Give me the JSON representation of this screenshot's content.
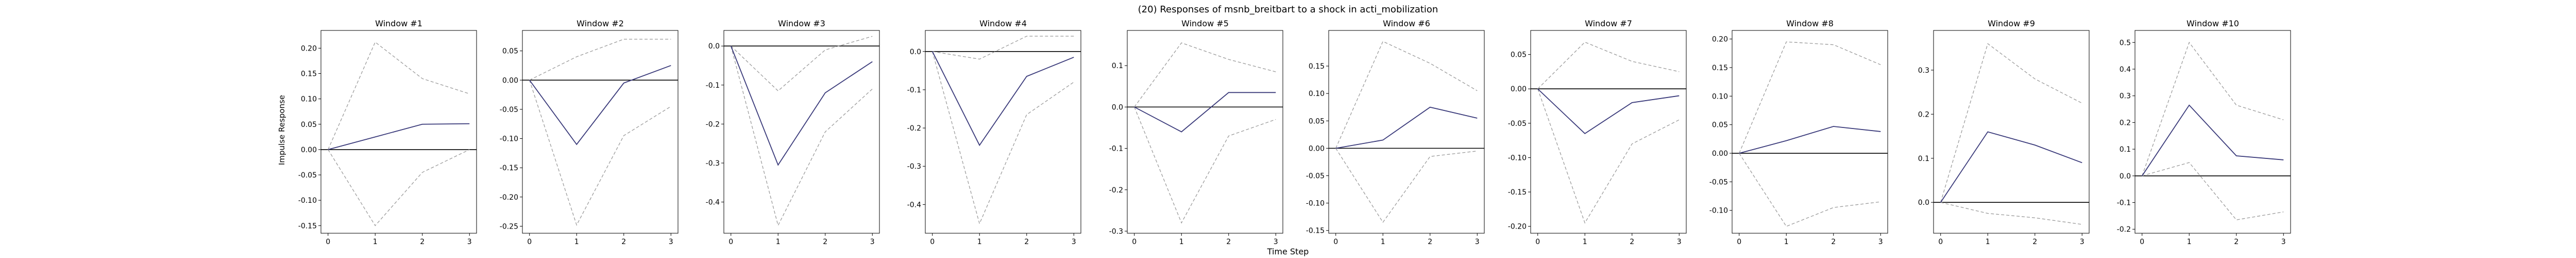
{
  "figure": {
    "suptitle": "(20) Responses of msnb_breitbart to a shock in acti_mobilization",
    "xlabel": "Time Step",
    "ylabel": "Impulse Response"
  },
  "colors": {
    "response_line": "#3a3a7a",
    "band_line": "#9a9a9a",
    "zero_line": "#000000",
    "axes_frame": "#000000"
  },
  "chart_data": [
    {
      "type": "line",
      "title": "Window #1",
      "x": [
        0,
        1,
        2,
        3
      ],
      "yticks": [
        -0.15,
        -0.1,
        -0.05,
        0.0,
        0.05,
        0.1,
        0.15,
        0.2
      ],
      "tick_decimals": 2,
      "ylim": [
        -0.165,
        0.235
      ],
      "series": [
        {
          "values": [
            0,
            0.025,
            0.05,
            0.051
          ]
        },
        {
          "values": [
            0,
            0.212,
            0.14,
            0.11
          ]
        },
        {
          "values": [
            0,
            -0.15,
            -0.045,
            0.0
          ]
        }
      ]
    },
    {
      "type": "line",
      "title": "Window #2",
      "x": [
        0,
        1,
        2,
        3
      ],
      "yticks": [
        -0.25,
        -0.2,
        -0.15,
        -0.1,
        -0.05,
        0.0,
        0.05
      ],
      "tick_decimals": 2,
      "ylim": [
        -0.262,
        0.085
      ],
      "series": [
        {
          "values": [
            0,
            -0.11,
            -0.005,
            0.025
          ]
        },
        {
          "values": [
            0,
            0.04,
            0.07,
            0.07
          ]
        },
        {
          "values": [
            0,
            -0.248,
            -0.095,
            -0.045
          ]
        }
      ]
    },
    {
      "type": "line",
      "title": "Window #3",
      "x": [
        0,
        1,
        2,
        3
      ],
      "yticks": [
        -0.4,
        -0.3,
        -0.2,
        -0.1,
        0.0
      ],
      "tick_decimals": 1,
      "ylim": [
        -0.48,
        0.04
      ],
      "series": [
        {
          "values": [
            0,
            -0.305,
            -0.12,
            -0.04
          ]
        },
        {
          "values": [
            0,
            -0.115,
            -0.01,
            0.025
          ]
        },
        {
          "values": [
            0,
            -0.46,
            -0.22,
            -0.11
          ]
        }
      ]
    },
    {
      "type": "line",
      "title": "Window #4",
      "x": [
        0,
        1,
        2,
        3
      ],
      "yticks": [
        -0.4,
        -0.3,
        -0.2,
        -0.1,
        0.0
      ],
      "tick_decimals": 1,
      "ylim": [
        -0.475,
        0.055
      ],
      "series": [
        {
          "values": [
            0,
            -0.245,
            -0.065,
            -0.015
          ]
        },
        {
          "values": [
            0,
            -0.02,
            0.04,
            0.04
          ]
        },
        {
          "values": [
            0,
            -0.45,
            -0.165,
            -0.08
          ]
        }
      ]
    },
    {
      "type": "line",
      "title": "Window #5",
      "x": [
        0,
        1,
        2,
        3
      ],
      "yticks": [
        -0.3,
        -0.2,
        -0.1,
        0.0,
        0.1
      ],
      "tick_decimals": 1,
      "ylim": [
        -0.305,
        0.185
      ],
      "series": [
        {
          "values": [
            0,
            -0.06,
            0.035,
            0.035
          ]
        },
        {
          "values": [
            0,
            0.155,
            0.115,
            0.085
          ]
        },
        {
          "values": [
            0,
            -0.28,
            -0.07,
            -0.03
          ]
        }
      ]
    },
    {
      "type": "line",
      "title": "Window #6",
      "x": [
        0,
        1,
        2,
        3
      ],
      "yticks": [
        -0.15,
        -0.1,
        -0.05,
        0.0,
        0.05,
        0.1,
        0.15
      ],
      "tick_decimals": 2,
      "ylim": [
        -0.155,
        0.215
      ],
      "series": [
        {
          "values": [
            0,
            0.015,
            0.075,
            0.055
          ]
        },
        {
          "values": [
            0,
            0.195,
            0.155,
            0.105
          ]
        },
        {
          "values": [
            0,
            -0.135,
            -0.015,
            -0.005
          ]
        }
      ]
    },
    {
      "type": "line",
      "title": "Window #7",
      "x": [
        0,
        1,
        2,
        3
      ],
      "yticks": [
        -0.2,
        -0.15,
        -0.1,
        -0.05,
        0.0,
        0.05
      ],
      "tick_decimals": 2,
      "ylim": [
        -0.21,
        0.085
      ],
      "series": [
        {
          "values": [
            0,
            -0.065,
            -0.02,
            -0.01
          ]
        },
        {
          "values": [
            0,
            0.068,
            0.04,
            0.025
          ]
        },
        {
          "values": [
            0,
            -0.195,
            -0.08,
            -0.045
          ]
        }
      ]
    },
    {
      "type": "line",
      "title": "Window #8",
      "x": [
        0,
        1,
        2,
        3
      ],
      "yticks": [
        -0.1,
        -0.05,
        0.0,
        0.05,
        0.1,
        0.15,
        0.2
      ],
      "tick_decimals": 2,
      "ylim": [
        -0.14,
        0.215
      ],
      "series": [
        {
          "values": [
            0,
            0.022,
            0.047,
            0.038
          ]
        },
        {
          "values": [
            0,
            0.195,
            0.19,
            0.155
          ]
        },
        {
          "values": [
            0,
            -0.128,
            -0.095,
            -0.085
          ]
        }
      ]
    },
    {
      "type": "line",
      "title": "Window #9",
      "x": [
        0,
        1,
        2,
        3
      ],
      "yticks": [
        0.0,
        0.1,
        0.2,
        0.3
      ],
      "tick_decimals": 1,
      "ylim": [
        -0.07,
        0.39
      ],
      "series": [
        {
          "values": [
            0,
            0.16,
            0.13,
            0.09
          ]
        },
        {
          "values": [
            0,
            0.36,
            0.28,
            0.225
          ]
        },
        {
          "values": [
            0,
            -0.025,
            -0.035,
            -0.05
          ]
        }
      ]
    },
    {
      "type": "line",
      "title": "Window #10",
      "x": [
        0,
        1,
        2,
        3
      ],
      "yticks": [
        -0.2,
        -0.1,
        0.0,
        0.1,
        0.2,
        0.3,
        0.4,
        0.5
      ],
      "tick_decimals": 1,
      "ylim": [
        -0.215,
        0.545
      ],
      "series": [
        {
          "values": [
            0,
            0.265,
            0.075,
            0.06
          ]
        },
        {
          "values": [
            0,
            0.5,
            0.265,
            0.21
          ]
        },
        {
          "values": [
            0,
            0.05,
            -0.165,
            -0.135
          ]
        }
      ]
    }
  ]
}
